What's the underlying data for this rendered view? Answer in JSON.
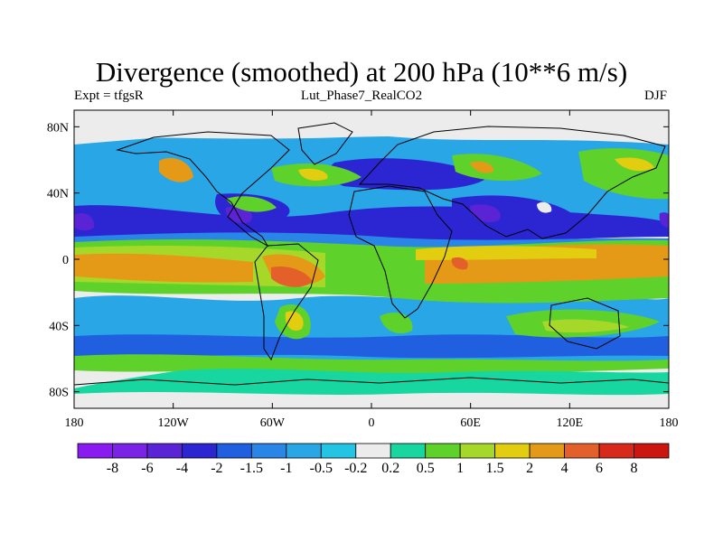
{
  "title": "Divergence (smoothed) at 200 hPa (10**6 m/s)",
  "subtitle_left": "Expt = tfgsR",
  "subtitle_center": "Lut_Phase7_RealCO2",
  "subtitle_right": "DJF",
  "lat_ticks": [
    "80N",
    "40N",
    "0",
    "40S",
    "80S"
  ],
  "lon_ticks": [
    "180",
    "120W",
    "60W",
    "0",
    "60E",
    "120E",
    "180"
  ],
  "colorbar": {
    "labels": [
      "-8",
      "-6",
      "-4",
      "-2",
      "-1.5",
      "-1",
      "-0.5",
      "-0.2",
      "0.2",
      "0.5",
      "1",
      "1.5",
      "2",
      "4",
      "6",
      "8"
    ],
    "colors": [
      "#8a1bf0",
      "#7a22e6",
      "#5a24d6",
      "#2b26d2",
      "#1f5fe0",
      "#2a86e6",
      "#28a6e6",
      "#23c4e4",
      "#ececec",
      "#17d6a0",
      "#5ed22a",
      "#a6d82a",
      "#e2cd10",
      "#e49a16",
      "#e4602a",
      "#d82a1a",
      "#cc1610"
    ]
  },
  "colors": {
    "land_outline": "#000000",
    "background": "#ececec"
  }
}
